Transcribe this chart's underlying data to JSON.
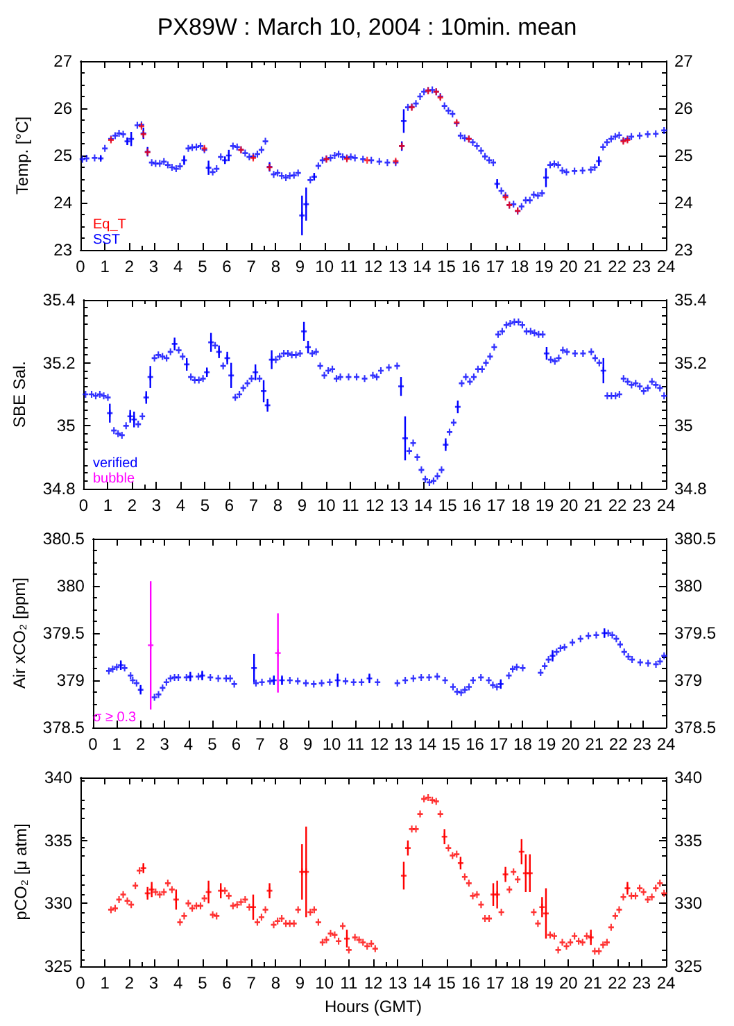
{
  "chart_data": [
    {
      "type": "scatter",
      "title": "PX89W : March 10, 2004 : 10min. mean",
      "ylabel": "Temp. [°C]",
      "xlim": [
        0,
        24
      ],
      "xticks": [
        0,
        1,
        2,
        3,
        4,
        5,
        6,
        7,
        8,
        9,
        10,
        11,
        12,
        13,
        14,
        15,
        16,
        17,
        18,
        19,
        20,
        21,
        22,
        23,
        24
      ],
      "ylim": [
        23,
        27
      ],
      "yticks": [
        23,
        24,
        25,
        26,
        27
      ],
      "y2lim": [
        23,
        27
      ],
      "y2ticks": [
        23,
        24,
        25,
        26,
        27
      ],
      "marker": "cross",
      "grid": false,
      "legend": "bottom left",
      "series": [
        {
          "name": "Eq_T",
          "color": "#ff0000",
          "x": [
            1.25,
            2.5,
            2.58,
            2.75,
            5.08,
            6.58,
            7.08,
            7.75,
            10.08,
            10.92,
            11.75,
            12.92,
            13.17,
            13.58,
            14.25,
            14.58,
            14.75,
            15.42,
            15.92,
            17.42,
            17.58,
            17.92,
            22.25,
            22.42
          ],
          "values": [
            25.33,
            25.62,
            25.45,
            25.07,
            25.15,
            25.12,
            24.95,
            24.75,
            24.92,
            24.93,
            24.9,
            24.88,
            25.2,
            26.02,
            26.37,
            26.35,
            26.23,
            25.7,
            25.35,
            24.12,
            23.95,
            23.83,
            25.3,
            25.33
          ]
        },
        {
          "name": "SST",
          "color": "#0000ff",
          "x": [
            0.08,
            0.25,
            0.58,
            0.83,
            1.0,
            1.25,
            1.42,
            1.58,
            1.75,
            1.92,
            2.08,
            2.33,
            2.5,
            2.58,
            2.75,
            2.92,
            3.08,
            3.25,
            3.42,
            3.58,
            3.75,
            3.92,
            4.08,
            4.25,
            4.42,
            4.58,
            4.75,
            4.92,
            5.08,
            5.25,
            5.42,
            5.58,
            5.75,
            5.92,
            6.08,
            6.25,
            6.42,
            6.58,
            6.75,
            6.92,
            7.08,
            7.25,
            7.42,
            7.58,
            7.75,
            7.92,
            8.08,
            8.25,
            8.42,
            8.58,
            8.75,
            8.92,
            9.08,
            9.25,
            9.42,
            9.58,
            9.75,
            9.92,
            10.08,
            10.25,
            10.42,
            10.58,
            10.75,
            10.92,
            11.08,
            11.25,
            11.58,
            11.92,
            12.25,
            12.58,
            12.92,
            13.17,
            13.25,
            13.42,
            13.58,
            13.75,
            13.92,
            14.08,
            14.25,
            14.42,
            14.58,
            14.75,
            14.92,
            15.08,
            15.25,
            15.42,
            15.58,
            15.75,
            15.92,
            16.08,
            16.25,
            16.42,
            16.58,
            16.75,
            16.92,
            17.08,
            17.25,
            17.42,
            17.58,
            17.75,
            17.92,
            18.08,
            18.25,
            18.42,
            18.58,
            18.75,
            18.92,
            19.08,
            19.25,
            19.42,
            19.58,
            19.75,
            19.92,
            20.25,
            20.58,
            20.92,
            21.08,
            21.25,
            21.42,
            21.58,
            21.75,
            21.92,
            22.08,
            22.25,
            22.42,
            22.58,
            22.92,
            23.25,
            23.58,
            23.92
          ],
          "values": [
            24.92,
            24.94,
            24.95,
            24.94,
            25.15,
            25.35,
            25.42,
            25.47,
            25.45,
            25.3,
            25.35,
            25.64,
            25.65,
            25.47,
            25.08,
            24.85,
            24.83,
            24.83,
            24.87,
            24.8,
            24.75,
            24.72,
            24.77,
            24.9,
            25.15,
            25.17,
            25.18,
            25.2,
            25.12,
            24.74,
            24.65,
            24.72,
            24.97,
            24.9,
            25.0,
            25.2,
            25.18,
            25.12,
            25.05,
            24.97,
            24.98,
            25.03,
            25.12,
            25.3,
            24.76,
            24.6,
            24.63,
            24.57,
            24.53,
            24.57,
            24.58,
            24.63,
            23.73,
            23.97,
            24.48,
            24.55,
            24.78,
            24.9,
            24.93,
            24.95,
            25.0,
            25.03,
            24.97,
            24.95,
            24.97,
            24.95,
            24.92,
            24.9,
            24.87,
            24.85,
            24.85,
            25.2,
            25.73,
            26.02,
            26.03,
            26.1,
            26.25,
            26.35,
            26.38,
            26.39,
            26.35,
            26.25,
            26.05,
            25.95,
            25.88,
            25.68,
            25.42,
            25.37,
            25.35,
            25.28,
            25.2,
            25.1,
            24.98,
            24.9,
            24.85,
            24.4,
            24.25,
            24.15,
            23.95,
            23.97,
            23.82,
            23.92,
            24.05,
            24.05,
            24.17,
            24.15,
            24.2,
            24.53,
            24.8,
            24.82,
            24.8,
            24.68,
            24.65,
            24.67,
            24.68,
            24.7,
            24.75,
            24.88,
            25.18,
            25.28,
            25.35,
            25.4,
            25.43,
            25.32,
            25.35,
            25.4,
            25.42,
            25.45,
            25.46,
            25.53
          ],
          "errors": [
            null,
            null,
            null,
            0.05,
            null,
            null,
            null,
            null,
            null,
            0.08,
            0.15,
            null,
            null,
            0.12,
            0.1,
            null,
            null,
            null,
            null,
            null,
            null,
            null,
            null,
            0.1,
            null,
            null,
            null,
            null,
            null,
            0.15,
            null,
            null,
            null,
            0.08,
            0.12,
            null,
            null,
            null,
            null,
            null,
            null,
            null,
            null,
            null,
            0.1,
            null,
            null,
            null,
            null,
            null,
            null,
            null,
            0.42,
            0.35,
            null,
            0.08,
            null,
            null,
            null,
            null,
            null,
            null,
            null,
            null,
            null,
            null,
            null,
            null,
            null,
            null,
            null,
            0.1,
            0.25,
            null,
            null,
            null,
            null,
            null,
            null,
            null,
            null,
            null,
            null,
            null,
            null,
            null,
            null,
            null,
            null,
            null,
            null,
            null,
            null,
            null,
            null,
            0.1,
            null,
            null,
            null,
            null,
            null,
            null,
            null,
            null,
            null,
            null,
            null,
            0.2,
            null,
            null,
            null,
            null,
            null,
            null,
            null,
            null,
            null,
            0.1,
            null,
            null,
            null,
            null,
            null,
            null,
            null,
            null,
            null,
            null,
            null,
            null
          ]
        }
      ]
    },
    {
      "type": "scatter",
      "ylabel": "SBE Sal.",
      "xlim": [
        0,
        24
      ],
      "xticks": [
        0,
        1,
        2,
        3,
        4,
        5,
        6,
        7,
        8,
        9,
        10,
        11,
        12,
        13,
        14,
        15,
        16,
        17,
        18,
        19,
        20,
        21,
        22,
        23,
        24
      ],
      "ylim": [
        34.8,
        35.4
      ],
      "yticks": [
        34.8,
        35,
        35.2,
        35.4
      ],
      "y2lim": [
        34.8,
        35.4
      ],
      "y2ticks": [
        34.8,
        35,
        35.2,
        35.4
      ],
      "marker": "cross",
      "grid": false,
      "legend": "bottom left",
      "series": [
        {
          "name": "verified",
          "color": "#0000ff",
          "x": [
            0.08,
            0.33,
            0.5,
            0.67,
            0.83,
            1.0,
            1.08,
            1.25,
            1.42,
            1.58,
            1.75,
            1.92,
            2.08,
            2.25,
            2.42,
            2.58,
            2.75,
            2.92,
            3.08,
            3.25,
            3.42,
            3.58,
            3.75,
            3.92,
            4.08,
            4.25,
            4.42,
            4.58,
            4.75,
            4.92,
            5.08,
            5.25,
            5.42,
            5.58,
            5.75,
            5.92,
            6.08,
            6.25,
            6.42,
            6.58,
            6.75,
            6.92,
            7.08,
            7.25,
            7.42,
            7.58,
            7.75,
            7.92,
            8.08,
            8.25,
            8.42,
            8.58,
            8.75,
            8.92,
            9.08,
            9.25,
            9.42,
            9.58,
            9.75,
            9.92,
            10.08,
            10.25,
            10.42,
            10.58,
            10.92,
            11.25,
            11.58,
            11.92,
            12.08,
            12.25,
            12.58,
            12.92,
            13.08,
            13.25,
            13.42,
            13.58,
            13.75,
            13.92,
            14.08,
            14.25,
            14.42,
            14.58,
            14.75,
            14.92,
            15.08,
            15.25,
            15.42,
            15.58,
            15.75,
            15.92,
            16.08,
            16.25,
            16.42,
            16.58,
            16.75,
            16.92,
            17.08,
            17.25,
            17.42,
            17.58,
            17.75,
            17.92,
            18.08,
            18.25,
            18.42,
            18.58,
            18.75,
            18.92,
            19.08,
            19.25,
            19.42,
            19.58,
            19.75,
            19.92,
            20.25,
            20.58,
            20.92,
            21.08,
            21.25,
            21.42,
            21.58,
            21.75,
            21.92,
            22.08,
            22.25,
            22.42,
            22.58,
            22.75,
            22.92,
            23.08,
            23.25,
            23.42,
            23.58,
            23.75,
            23.92
          ],
          "values": [
            35.1,
            35.1,
            35.095,
            35.1,
            35.095,
            35.09,
            35.04,
            34.985,
            34.975,
            34.97,
            35.0,
            35.03,
            35.02,
            35.005,
            35.03,
            35.09,
            35.155,
            35.215,
            35.225,
            35.22,
            35.215,
            35.235,
            35.26,
            35.24,
            35.22,
            35.195,
            35.155,
            35.145,
            35.145,
            35.15,
            35.17,
            35.265,
            35.255,
            35.235,
            35.19,
            35.215,
            35.16,
            35.09,
            35.1,
            35.12,
            35.135,
            35.15,
            35.17,
            35.15,
            35.11,
            35.065,
            35.21,
            35.21,
            35.22,
            35.23,
            35.23,
            35.225,
            35.225,
            35.23,
            35.3,
            35.25,
            35.23,
            35.235,
            35.19,
            35.16,
            35.175,
            35.18,
            35.15,
            35.155,
            35.155,
            35.155,
            35.15,
            35.16,
            35.155,
            35.175,
            35.185,
            35.19,
            35.125,
            34.96,
            34.92,
            34.945,
            34.9,
            34.86,
            34.83,
            34.82,
            34.825,
            34.84,
            34.86,
            34.94,
            34.98,
            35.01,
            35.06,
            35.135,
            35.155,
            35.14,
            35.155,
            35.18,
            35.18,
            35.2,
            35.22,
            35.25,
            35.29,
            35.3,
            35.32,
            35.325,
            35.33,
            35.33,
            35.32,
            35.3,
            35.3,
            35.295,
            35.29,
            35.29,
            35.23,
            35.21,
            35.205,
            35.215,
            35.24,
            35.235,
            35.23,
            35.23,
            35.235,
            35.215,
            35.2,
            35.175,
            35.095,
            35.095,
            35.095,
            35.1,
            35.15,
            35.14,
            35.13,
            35.135,
            35.125,
            35.11,
            35.12,
            35.14,
            35.13,
            35.12,
            35.095
          ],
          "errors": [
            null,
            null,
            null,
            null,
            null,
            null,
            0.03,
            null,
            null,
            null,
            null,
            0.02,
            0.025,
            null,
            null,
            0.02,
            0.035,
            null,
            null,
            null,
            null,
            null,
            0.02,
            null,
            null,
            0.02,
            null,
            null,
            null,
            null,
            0.015,
            0.03,
            null,
            0.02,
            null,
            0.02,
            0.04,
            null,
            null,
            null,
            null,
            null,
            0.025,
            null,
            0.035,
            0.02,
            0.03,
            null,
            null,
            null,
            null,
            null,
            null,
            null,
            0.03,
            0.02,
            null,
            null,
            null,
            null,
            null,
            null,
            null,
            null,
            null,
            null,
            null,
            null,
            null,
            null,
            null,
            null,
            0.03,
            0.07,
            null,
            null,
            null,
            null,
            null,
            null,
            null,
            null,
            null,
            0.02,
            null,
            null,
            0.02,
            null,
            null,
            null,
            null,
            null,
            null,
            null,
            null,
            null,
            null,
            null,
            null,
            null,
            null,
            null,
            null,
            null,
            null,
            null,
            null,
            null,
            0.02,
            null,
            null,
            null,
            null,
            null,
            null,
            null,
            null,
            null,
            null,
            0.04,
            null,
            null,
            null,
            null,
            null,
            null,
            null,
            null,
            null,
            null,
            null,
            null,
            null,
            null,
            null
          ]
        },
        {
          "name": "bubble",
          "color": "#ff00ff"
        }
      ]
    },
    {
      "type": "scatter",
      "ylabel": "Air xCO₂ [ppm]",
      "xlim": [
        0,
        24
      ],
      "xticks": [
        0,
        1,
        2,
        3,
        4,
        5,
        6,
        7,
        8,
        9,
        10,
        11,
        12,
        13,
        14,
        15,
        16,
        17,
        18,
        19,
        20,
        21,
        22,
        23,
        24
      ],
      "ylim": [
        378.5,
        380.5
      ],
      "yticks": [
        378.5,
        379,
        379.5,
        380,
        380.5
      ],
      "y2lim": [
        378.5,
        380.5
      ],
      "y2ticks": [
        378.5,
        379,
        379.5,
        380,
        380.5
      ],
      "marker": "cross",
      "grid": false,
      "legend": "bottom left",
      "series": [
        {
          "color": "#0000ff",
          "x": [
            0.67,
            0.83,
            1.0,
            1.17,
            1.33,
            1.58,
            1.67,
            1.83,
            2.0,
            2.58,
            2.75,
            2.92,
            3.08,
            3.25,
            3.42,
            3.58,
            3.92,
            4.08,
            4.42,
            4.58,
            4.92,
            5.25,
            5.58,
            5.75,
            5.92,
            6.75,
            6.83,
            7.08,
            7.42,
            7.58,
            7.92,
            8.25,
            8.58,
            8.92,
            9.25,
            9.58,
            9.92,
            10.25,
            10.58,
            10.92,
            11.25,
            11.58,
            11.92,
            12.75,
            13.08,
            13.42,
            13.75,
            14.08,
            14.42,
            14.75,
            15.08,
            15.25,
            15.42,
            15.58,
            15.75,
            15.92,
            16.25,
            16.58,
            16.75,
            16.92,
            17.08,
            17.42,
            17.58,
            17.75,
            18.0,
            18.75,
            18.92,
            19.08,
            19.25,
            19.42,
            19.58,
            19.75,
            20.08,
            20.42,
            20.75,
            21.08,
            21.42,
            21.58,
            21.75,
            21.92,
            22.08,
            22.25,
            22.42,
            22.58,
            22.92,
            23.25,
            23.58,
            23.75,
            23.92
          ],
          "values": [
            379.1,
            379.12,
            379.14,
            379.16,
            379.13,
            379.05,
            379.0,
            378.97,
            378.9,
            378.82,
            378.85,
            378.92,
            378.98,
            379.02,
            379.03,
            379.03,
            379.03,
            379.04,
            379.04,
            379.05,
            379.03,
            379.02,
            379.02,
            379.02,
            378.96,
            379.13,
            378.97,
            378.98,
            378.99,
            379.0,
            379.0,
            379.0,
            378.99,
            378.97,
            378.96,
            378.97,
            378.98,
            379.0,
            378.99,
            378.98,
            378.98,
            379.02,
            378.98,
            378.97,
            379.0,
            379.02,
            379.03,
            379.03,
            379.04,
            379.0,
            378.93,
            378.88,
            378.87,
            378.9,
            378.93,
            379.0,
            379.03,
            379.0,
            378.95,
            378.93,
            378.96,
            379.05,
            379.12,
            379.14,
            379.13,
            379.08,
            379.15,
            379.22,
            379.26,
            379.3,
            379.34,
            379.35,
            379.4,
            379.44,
            379.47,
            379.48,
            379.5,
            379.5,
            379.48,
            379.44,
            379.38,
            379.3,
            379.25,
            379.22,
            379.19,
            379.18,
            379.17,
            379.2,
            379.26
          ],
          "errors": [
            null,
            null,
            null,
            0.05,
            null,
            null,
            null,
            null,
            0.05,
            null,
            null,
            null,
            null,
            null,
            null,
            null,
            null,
            0.05,
            null,
            0.05,
            null,
            null,
            null,
            null,
            null,
            0.15,
            null,
            null,
            null,
            0.05,
            0.05,
            null,
            null,
            null,
            null,
            null,
            null,
            0.07,
            null,
            null,
            null,
            0.05,
            null,
            null,
            null,
            null,
            null,
            null,
            null,
            null,
            null,
            null,
            null,
            null,
            null,
            null,
            null,
            null,
            null,
            null,
            0.05,
            null,
            null,
            null,
            null,
            null,
            null,
            null,
            0.06,
            null,
            null,
            null,
            null,
            null,
            null,
            null,
            0.05,
            null,
            null,
            null,
            null,
            null,
            null,
            null,
            null,
            null,
            null,
            null,
            null
          ]
        },
        {
          "name": "σ ≥ 0.3",
          "color": "#ff00ff",
          "x": [
            2.42,
            7.75
          ],
          "values": [
            379.37,
            379.29
          ],
          "errors": [
            0.68,
            0.42
          ]
        }
      ]
    },
    {
      "type": "scatter",
      "ylabel": "pCO₂ [μ atm]",
      "xlabel": "Hours (GMT)",
      "xlim": [
        0,
        24
      ],
      "xticks": [
        0,
        1,
        2,
        3,
        4,
        5,
        6,
        7,
        8,
        9,
        10,
        11,
        12,
        13,
        14,
        15,
        16,
        17,
        18,
        19,
        20,
        21,
        22,
        23,
        24
      ],
      "ylim": [
        325,
        340
      ],
      "yticks": [
        325,
        330,
        335,
        340
      ],
      "y2lim": [
        325,
        340
      ],
      "y2ticks": [
        325,
        330,
        335,
        340
      ],
      "marker": "cross",
      "grid": false,
      "series": [
        {
          "color": "#ff0000",
          "x": [
            1.25,
            1.42,
            1.58,
            1.75,
            1.92,
            2.08,
            2.25,
            2.42,
            2.58,
            2.75,
            2.92,
            3.08,
            3.25,
            3.42,
            3.58,
            3.75,
            3.92,
            4.08,
            4.25,
            4.42,
            4.58,
            4.75,
            4.92,
            5.08,
            5.25,
            5.42,
            5.58,
            5.75,
            5.92,
            6.08,
            6.25,
            6.42,
            6.58,
            6.75,
            6.92,
            7.08,
            7.25,
            7.42,
            7.58,
            7.75,
            7.92,
            8.08,
            8.25,
            8.42,
            8.58,
            8.75,
            8.92,
            9.08,
            9.25,
            9.42,
            9.58,
            9.75,
            9.92,
            10.08,
            10.25,
            10.42,
            10.58,
            10.75,
            10.92,
            11.0,
            11.25,
            11.42,
            11.58,
            11.75,
            11.92,
            12.08,
            13.25,
            13.42,
            13.58,
            13.75,
            13.92,
            14.08,
            14.25,
            14.42,
            14.58,
            14.75,
            14.92,
            15.08,
            15.25,
            15.42,
            15.58,
            15.75,
            15.92,
            16.08,
            16.25,
            16.42,
            16.58,
            16.75,
            16.92,
            17.08,
            17.25,
            17.42,
            17.58,
            17.75,
            17.92,
            18.08,
            18.25,
            18.42,
            18.58,
            18.75,
            18.92,
            19.08,
            19.25,
            19.42,
            19.58,
            19.75,
            19.92,
            20.08,
            20.25,
            20.42,
            20.58,
            20.75,
            20.92,
            21.08,
            21.25,
            21.42,
            21.58,
            21.75,
            21.92,
            22.08,
            22.25,
            22.42,
            22.58,
            22.75,
            22.92,
            23.08,
            23.25,
            23.42,
            23.58,
            23.75,
            23.92
          ],
          "values": [
            329.5,
            329.6,
            330.3,
            330.7,
            330.2,
            329.9,
            331.4,
            332.6,
            332.8,
            330.8,
            331.1,
            330.9,
            330.7,
            330.9,
            331.6,
            331.1,
            330.3,
            328.5,
            329.0,
            330.0,
            329.6,
            329.8,
            329.8,
            330.4,
            330.9,
            329.1,
            329.0,
            331.0,
            331.0,
            330.6,
            329.8,
            329.9,
            330.1,
            330.3,
            329.7,
            329.7,
            328.5,
            328.9,
            329.5,
            331.0,
            328.3,
            328.6,
            328.8,
            328.4,
            328.4,
            328.4,
            329.5,
            332.5,
            332.5,
            329.3,
            329.5,
            328.5,
            326.9,
            327.1,
            327.6,
            327.5,
            327.0,
            328.2,
            327.2,
            326.3,
            327.3,
            327.1,
            326.9,
            326.6,
            326.8,
            326.4,
            332.2,
            334.4,
            335.9,
            335.9,
            337.1,
            338.3,
            338.4,
            338.2,
            338.1,
            337.1,
            335.3,
            334.4,
            333.8,
            333.9,
            333.2,
            332.1,
            331.6,
            330.6,
            330.7,
            329.9,
            328.8,
            328.8,
            330.7,
            330.7,
            329.3,
            332.3,
            331.1,
            332.5,
            331.9,
            334.1,
            332.4,
            332.4,
            329.3,
            328.4,
            329.7,
            329.2,
            327.5,
            327.4,
            326.3,
            326.9,
            326.6,
            326.9,
            327.4,
            327.0,
            326.9,
            327.4,
            327.3,
            326.2,
            326.2,
            326.7,
            326.9,
            328.1,
            329.0,
            329.5,
            330.5,
            331.2,
            330.6,
            330.6,
            331.2,
            330.9,
            330.3,
            330.5,
            331.2,
            331.6,
            330.8
          ],
          "errors": [
            null,
            null,
            null,
            null,
            null,
            null,
            null,
            null,
            0.4,
            0.5,
            0.6,
            null,
            null,
            null,
            null,
            null,
            0.8,
            null,
            null,
            null,
            null,
            null,
            null,
            null,
            0.9,
            null,
            null,
            0.6,
            null,
            null,
            null,
            null,
            null,
            null,
            null,
            1,
            null,
            null,
            null,
            0.6,
            null,
            null,
            null,
            null,
            null,
            null,
            null,
            2.2,
            3.6,
            null,
            null,
            null,
            null,
            null,
            null,
            null,
            null,
            null,
            0.7,
            null,
            null,
            null,
            null,
            null,
            null,
            null,
            1.1,
            0.6,
            null,
            null,
            null,
            null,
            null,
            null,
            null,
            null,
            0.6,
            null,
            null,
            null,
            0.5,
            null,
            null,
            null,
            null,
            null,
            null,
            null,
            0.9,
            1.1,
            null,
            0.6,
            null,
            null,
            null,
            1,
            1.5,
            1.5,
            null,
            null,
            0.8,
            2,
            null,
            null,
            null,
            null,
            null,
            null,
            null,
            null,
            null,
            null,
            0.6,
            null,
            null,
            null,
            null,
            null,
            null,
            null,
            null,
            0.5,
            null,
            null,
            null,
            null,
            null,
            null,
            null,
            null,
            null
          ]
        }
      ]
    }
  ]
}
